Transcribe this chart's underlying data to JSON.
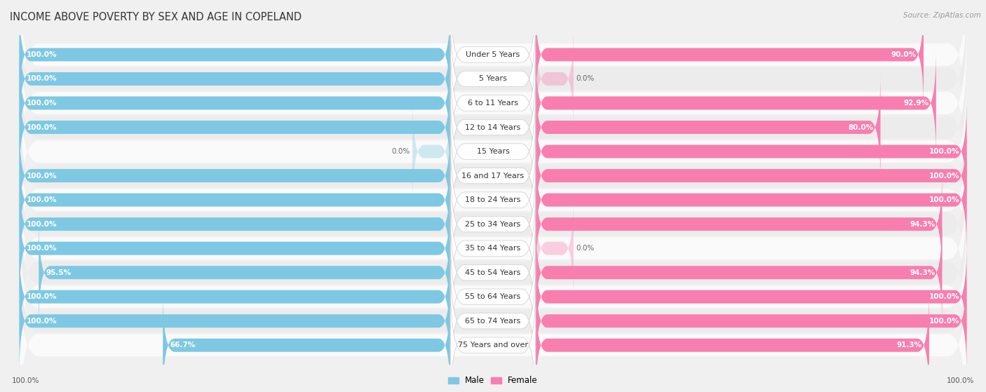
{
  "title": "INCOME ABOVE POVERTY BY SEX AND AGE IN COPELAND",
  "source": "Source: ZipAtlas.com",
  "categories": [
    "Under 5 Years",
    "5 Years",
    "6 to 11 Years",
    "12 to 14 Years",
    "15 Years",
    "16 and 17 Years",
    "18 to 24 Years",
    "25 to 34 Years",
    "35 to 44 Years",
    "45 to 54 Years",
    "55 to 64 Years",
    "65 to 74 Years",
    "75 Years and over"
  ],
  "male": [
    100.0,
    100.0,
    100.0,
    100.0,
    0.0,
    100.0,
    100.0,
    100.0,
    100.0,
    95.5,
    100.0,
    100.0,
    66.7
  ],
  "female": [
    90.0,
    0.0,
    92.9,
    80.0,
    100.0,
    100.0,
    100.0,
    94.3,
    0.0,
    94.3,
    100.0,
    100.0,
    91.3
  ],
  "male_color": "#7ec8e3",
  "female_color": "#f87eb0",
  "male_label": "Male",
  "female_label": "Female",
  "bg_color": "#f0f0f0",
  "row_bg_even": "#fafafa",
  "row_bg_odd": "#ececec",
  "max_val": 100.0,
  "title_fontsize": 10.5,
  "cat_fontsize": 8,
  "value_fontsize": 7.5,
  "source_fontsize": 7.5,
  "legend_fontsize": 8.5,
  "bottom_label": "100.0%"
}
